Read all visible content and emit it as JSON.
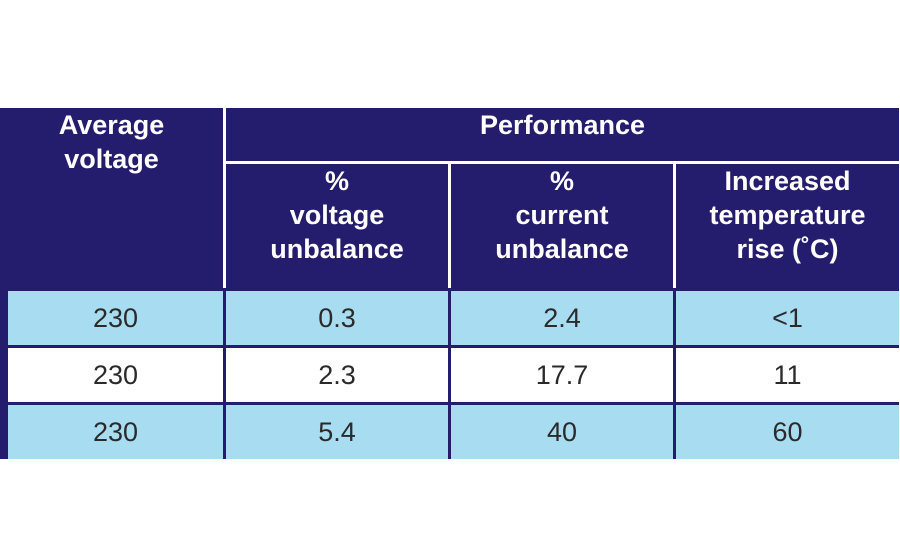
{
  "table": {
    "headers": {
      "average_voltage": "Average\nvoltage",
      "performance": "Performance",
      "voltage_unbalance": "%\nvoltage\nunbalance",
      "current_unbalance": "%\ncurrent\nunbalance",
      "temperature_rise": "Increased\ntemperature\nrise (˚C)"
    },
    "rows": [
      {
        "avg": "230",
        "voltage_unb": "0.3",
        "current_unb": "2.4",
        "temp_rise": "<1"
      },
      {
        "avg": "230",
        "voltage_unb": "2.3",
        "current_unb": "17.7",
        "temp_rise": "11"
      },
      {
        "avg": "230",
        "voltage_unb": "5.4",
        "current_unb": "40",
        "temp_rise": "60"
      }
    ]
  },
  "colors": {
    "header_bg": "#241d6e",
    "row_blue": "#a8dcf0",
    "row_white": "#ffffff"
  }
}
